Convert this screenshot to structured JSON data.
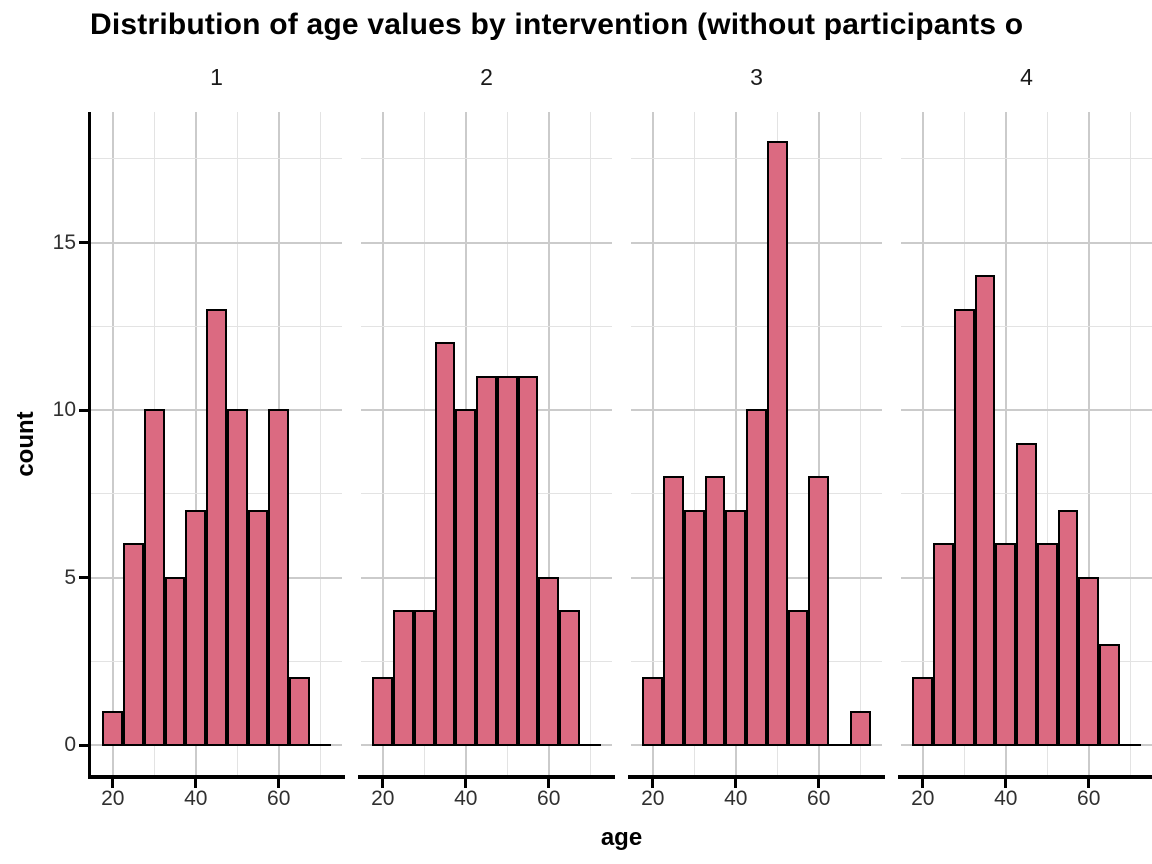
{
  "title": "Distribution of age values by intervention (without participants o",
  "axes": {
    "x_label": "age",
    "y_label": "count",
    "x_ticks": [
      "20",
      "40",
      "60"
    ],
    "y_ticks": [
      "0",
      "5",
      "10",
      "15"
    ]
  },
  "chart_data": {
    "type": "bar",
    "subtype": "faceted_histogram",
    "title": "Distribution of age values by intervention (without participants o…)",
    "xlabel": "age",
    "ylabel": "count",
    "facet_labels": [
      "1",
      "2",
      "3",
      "4"
    ],
    "bin_centers": [
      20,
      25,
      30,
      35,
      40,
      45,
      50,
      55,
      60,
      65,
      70
    ],
    "bin_width": 5,
    "series": [
      {
        "name": "1",
        "values": [
          1,
          6,
          10,
          5,
          7,
          13,
          10,
          7,
          10,
          2,
          0
        ]
      },
      {
        "name": "2",
        "values": [
          2,
          4,
          4,
          12,
          10,
          11,
          11,
          11,
          5,
          4,
          0
        ]
      },
      {
        "name": "3",
        "values": [
          2,
          8,
          7,
          8,
          7,
          10,
          18,
          4,
          8,
          0,
          1
        ]
      },
      {
        "name": "4",
        "values": [
          2,
          6,
          13,
          14,
          6,
          9,
          6,
          7,
          5,
          3,
          0
        ]
      }
    ],
    "x_tick_values": [
      20,
      40,
      60
    ],
    "y_tick_values": [
      0,
      5,
      10,
      15
    ],
    "x_minor_gridlines": [
      30,
      50,
      70
    ],
    "y_minor_gridlines": [
      2.5,
      7.5,
      12.5,
      17.5
    ],
    "x_range_shown": [
      14.75,
      75.25
    ],
    "y_range_shown": [
      -0.95,
      18.9
    ],
    "grid": true,
    "legend": "none"
  },
  "colors": {
    "bar_fill": "#DB6A81",
    "bar_stroke": "#000000",
    "grid_major": "#CBCBCB",
    "grid_minor": "#E3E3E3",
    "axis_line": "#000000",
    "tick_label": "#303030",
    "title_color": "#000000",
    "background": "#FFFFFF"
  }
}
